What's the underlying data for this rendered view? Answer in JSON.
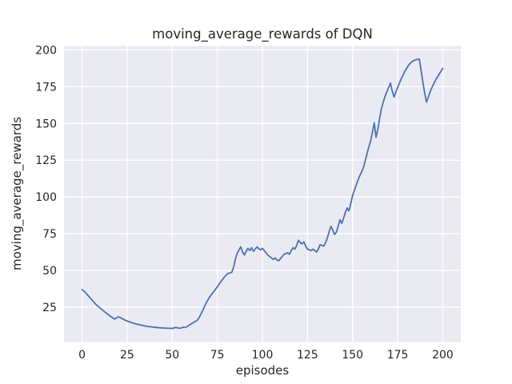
{
  "figure": {
    "title": "moving_average_rewards of DQN",
    "xlabel": "episodes",
    "ylabel": "moving_average_rewards"
  },
  "chart_data": {
    "type": "line",
    "title": "moving_average_rewards of DQN",
    "xlabel": "episodes",
    "ylabel": "moving_average_rewards",
    "grid": true,
    "legend_position": "none",
    "x_ticks": [
      0,
      25,
      50,
      75,
      100,
      125,
      150,
      175,
      200
    ],
    "y_ticks": [
      25,
      50,
      75,
      100,
      125,
      150,
      175,
      200
    ],
    "xlim": [
      -10,
      210
    ],
    "ylim": [
      1.3,
      202.7
    ],
    "x_start": 0,
    "x_step": 1,
    "colors": {
      "line": "#4C72B0",
      "plot_background": "#EAEAF2",
      "grid": "#FFFFFF",
      "text": "#262626",
      "figure_background": "#FFFFFF"
    },
    "series": [
      {
        "name": "moving_average_rewards",
        "values": [
          37.0,
          36.0,
          34.8,
          33.4,
          32.0,
          30.6,
          29.2,
          27.8,
          26.5,
          25.4,
          24.4,
          23.4,
          22.4,
          21.4,
          20.4,
          19.5,
          18.6,
          17.7,
          16.9,
          17.6,
          18.4,
          18.1,
          17.4,
          16.7,
          16.1,
          15.6,
          15.1,
          14.7,
          14.3,
          13.9,
          13.6,
          13.3,
          13.0,
          12.7,
          12.5,
          12.2,
          12.0,
          11.8,
          11.7,
          11.5,
          11.4,
          11.2,
          11.1,
          11.0,
          10.9,
          10.8,
          10.8,
          10.7,
          10.6,
          10.6,
          10.5,
          10.9,
          11.2,
          10.9,
          10.7,
          10.8,
          11.4,
          11.2,
          11.6,
          12.4,
          13.2,
          14.0,
          14.7,
          15.4,
          16.3,
          18.0,
          20.5,
          23.0,
          25.8,
          28.2,
          30.4,
          32.3,
          34.0,
          35.6,
          37.2,
          38.8,
          40.6,
          42.4,
          44.0,
          45.6,
          47.0,
          48.0,
          48.3,
          48.7,
          52.0,
          57.5,
          61.5,
          64.0,
          66.0,
          62.5,
          60.5,
          63.0,
          65.0,
          63.5,
          65.5,
          63.0,
          64.5,
          66.0,
          64.8,
          64.0,
          65.0,
          63.5,
          62.0,
          60.5,
          59.5,
          58.5,
          57.5,
          58.5,
          57.2,
          56.5,
          58.0,
          59.5,
          61.0,
          61.5,
          62.0,
          61.0,
          63.5,
          65.5,
          64.5,
          67.0,
          70.5,
          69.0,
          68.0,
          69.5,
          66.5,
          64.5,
          64.0,
          63.5,
          64.5,
          63.5,
          62.5,
          64.5,
          67.5,
          67.0,
          66.5,
          69.0,
          72.0,
          76.5,
          80.0,
          77.5,
          74.5,
          76.0,
          80.0,
          84.5,
          82.0,
          85.5,
          89.5,
          92.5,
          90.5,
          95.5,
          101.0,
          104.5,
          108.0,
          111.5,
          114.5,
          117.0,
          120.0,
          124.5,
          129.5,
          134.0,
          138.0,
          144.0,
          150.5,
          140.5,
          146.0,
          153.5,
          160.0,
          164.5,
          168.5,
          171.5,
          174.5,
          177.5,
          172.0,
          168.0,
          171.5,
          174.5,
          177.5,
          180.5,
          183.0,
          185.5,
          187.5,
          189.5,
          191.0,
          192.0,
          192.8,
          193.3,
          193.6,
          193.8,
          186.0,
          178.0,
          170.5,
          164.5,
          168.0,
          171.5,
          174.5,
          177.0,
          179.5,
          181.5,
          183.5,
          185.5,
          187.5
        ]
      }
    ]
  }
}
